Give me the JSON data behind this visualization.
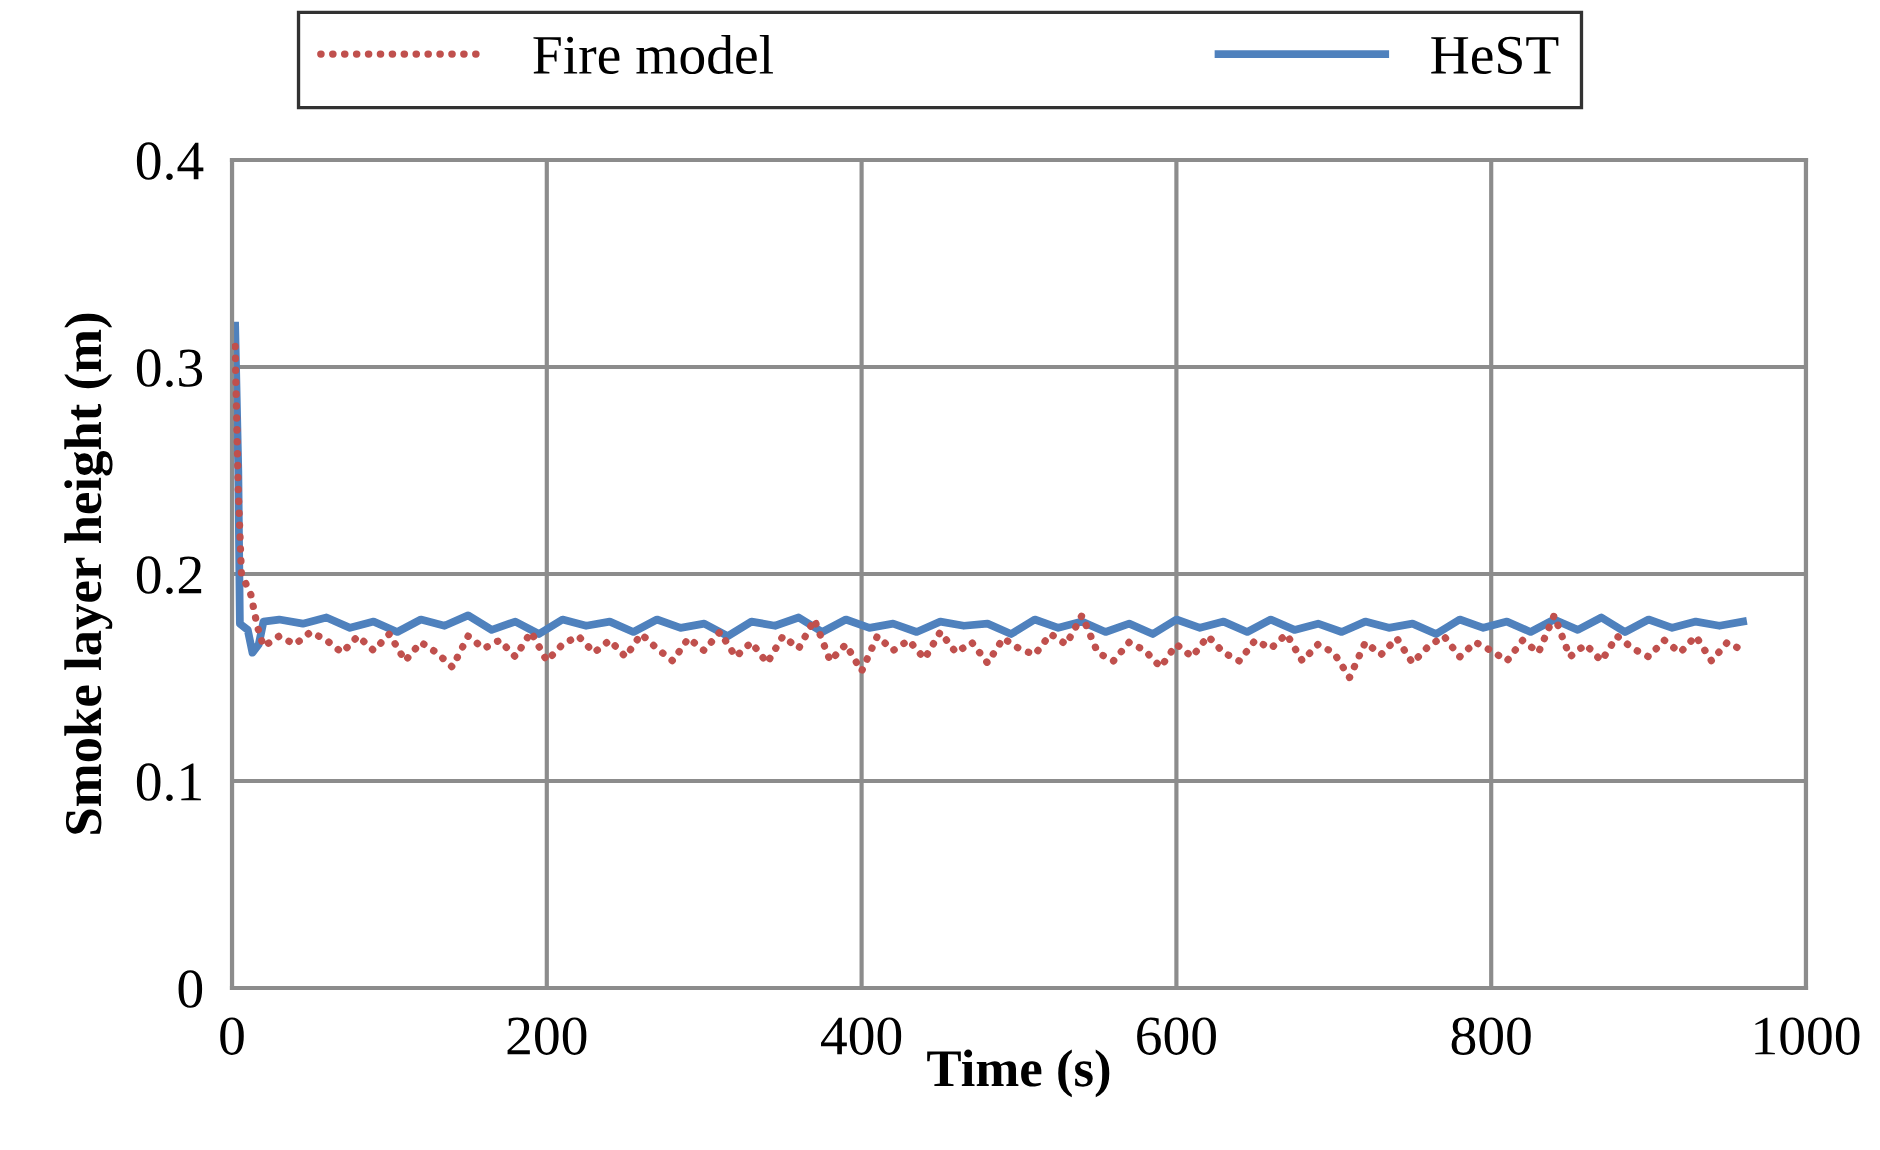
{
  "chart_data": {
    "type": "line",
    "xlabel": "Time (s)",
    "ylabel": "Smoke layer height (m)",
    "xlim": [
      0,
      1000
    ],
    "xticks": [
      0,
      200,
      400,
      600,
      800,
      1000
    ],
    "ylim": [
      0,
      0.4
    ],
    "yticks": [
      0,
      0.1,
      0.2,
      0.3,
      0.4
    ],
    "grid": true,
    "legend": "top",
    "marker": "none",
    "series": [
      {
        "name": "Fire model",
        "color": "#c0504d",
        "line_style": "dotted",
        "x": [
          2,
          4,
          6,
          9,
          12,
          16,
          20,
          30,
          40,
          50,
          60,
          70,
          80,
          90,
          100,
          110,
          120,
          130,
          140,
          150,
          160,
          170,
          180,
          190,
          200,
          210,
          220,
          230,
          240,
          250,
          260,
          270,
          280,
          290,
          300,
          310,
          320,
          330,
          340,
          350,
          360,
          370,
          380,
          390,
          400,
          410,
          420,
          430,
          440,
          450,
          460,
          470,
          480,
          490,
          500,
          510,
          520,
          530,
          540,
          550,
          560,
          570,
          580,
          590,
          600,
          610,
          620,
          630,
          640,
          650,
          660,
          670,
          680,
          690,
          700,
          710,
          720,
          730,
          740,
          750,
          760,
          770,
          780,
          790,
          800,
          810,
          820,
          830,
          840,
          850,
          860,
          870,
          880,
          890,
          900,
          910,
          920,
          930,
          940,
          950,
          960
        ],
        "values": [
          0.31,
          0.24,
          0.2,
          0.195,
          0.19,
          0.175,
          0.165,
          0.17,
          0.166,
          0.172,
          0.168,
          0.162,
          0.17,
          0.163,
          0.171,
          0.158,
          0.167,
          0.162,
          0.155,
          0.17,
          0.164,
          0.168,
          0.16,
          0.172,
          0.158,
          0.166,
          0.17,
          0.162,
          0.168,
          0.16,
          0.171,
          0.164,
          0.158,
          0.169,
          0.163,
          0.172,
          0.16,
          0.167,
          0.157,
          0.17,
          0.164,
          0.178,
          0.158,
          0.166,
          0.153,
          0.17,
          0.163,
          0.168,
          0.159,
          0.172,
          0.162,
          0.167,
          0.157,
          0.169,
          0.164,
          0.161,
          0.171,
          0.166,
          0.18,
          0.162,
          0.158,
          0.167,
          0.163,
          0.155,
          0.166,
          0.16,
          0.17,
          0.162,
          0.158,
          0.168,
          0.164,
          0.171,
          0.158,
          0.166,
          0.162,
          0.15,
          0.167,
          0.161,
          0.169,
          0.157,
          0.165,
          0.17,
          0.16,
          0.167,
          0.163,
          0.158,
          0.168,
          0.162,
          0.18,
          0.16,
          0.166,
          0.158,
          0.17,
          0.164,
          0.16,
          0.168,
          0.162,
          0.17,
          0.158,
          0.167,
          0.163
        ]
      },
      {
        "name": "HeST",
        "color": "#4f81bd",
        "line_style": "solid",
        "x": [
          2,
          4,
          5,
          10,
          13,
          17,
          20,
          30,
          45,
          60,
          75,
          90,
          105,
          120,
          135,
          150,
          165,
          180,
          195,
          210,
          225,
          240,
          255,
          270,
          285,
          300,
          315,
          330,
          345,
          360,
          375,
          390,
          405,
          420,
          435,
          450,
          465,
          480,
          495,
          510,
          525,
          540,
          555,
          570,
          585,
          600,
          615,
          630,
          645,
          660,
          675,
          690,
          705,
          720,
          735,
          750,
          765,
          780,
          795,
          810,
          825,
          840,
          855,
          870,
          885,
          900,
          915,
          930,
          945,
          960
        ],
        "values": [
          0.32,
          0.25,
          0.176,
          0.173,
          0.162,
          0.166,
          0.177,
          0.178,
          0.176,
          0.179,
          0.174,
          0.177,
          0.172,
          0.178,
          0.175,
          0.18,
          0.173,
          0.177,
          0.171,
          0.178,
          0.175,
          0.177,
          0.172,
          0.178,
          0.174,
          0.176,
          0.17,
          0.177,
          0.175,
          0.179,
          0.172,
          0.178,
          0.174,
          0.176,
          0.172,
          0.177,
          0.175,
          0.176,
          0.171,
          0.178,
          0.174,
          0.177,
          0.172,
          0.176,
          0.171,
          0.178,
          0.174,
          0.177,
          0.172,
          0.178,
          0.173,
          0.176,
          0.172,
          0.177,
          0.174,
          0.176,
          0.171,
          0.178,
          0.174,
          0.177,
          0.172,
          0.178,
          0.173,
          0.179,
          0.172,
          0.178,
          0.174,
          0.177,
          0.175,
          0.177
        ]
      }
    ]
  }
}
